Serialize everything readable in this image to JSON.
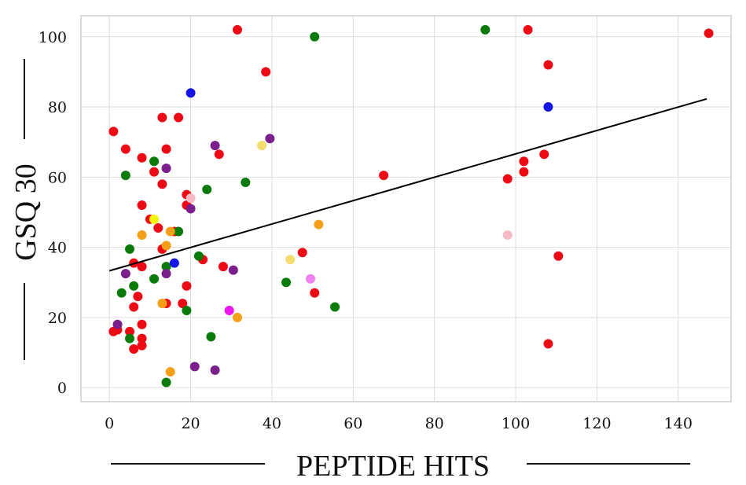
{
  "chart_data": {
    "type": "scatter",
    "xlabel": "PEPTIDE HITS",
    "ylabel": "GSQ 30",
    "xlim": [
      -7,
      153
    ],
    "ylim": [
      -4,
      106
    ],
    "xticks": [
      0,
      20,
      40,
      60,
      80,
      100,
      120,
      140
    ],
    "yticks": [
      0,
      20,
      40,
      60,
      80,
      100
    ],
    "grid": true,
    "legend": "none",
    "colors": {
      "red": "#ee0a14",
      "green": "#0a7a0a",
      "purple": "#7a1f8c",
      "orange": "#f5a018",
      "blue": "#1414e6",
      "pink": "#f7b9c4",
      "khaki": "#f5dc6e",
      "yellow": "#f5f50a",
      "violet": "#ee82ee",
      "magenta": "#ee14ee"
    },
    "trendline": {
      "x": [
        0,
        147
      ],
      "y": [
        33.3,
        82.3
      ],
      "color": "#000000"
    },
    "points": [
      {
        "x": 1,
        "y": 16,
        "c": "red"
      },
      {
        "x": 1,
        "y": 73,
        "c": "red"
      },
      {
        "x": 2,
        "y": 16.5,
        "c": "red"
      },
      {
        "x": 4,
        "y": 68,
        "c": "red"
      },
      {
        "x": 5,
        "y": 16,
        "c": "red"
      },
      {
        "x": 6,
        "y": 11,
        "c": "red"
      },
      {
        "x": 6,
        "y": 23,
        "c": "red"
      },
      {
        "x": 6,
        "y": 35.5,
        "c": "red"
      },
      {
        "x": 7,
        "y": 26,
        "c": "red"
      },
      {
        "x": 8,
        "y": 12,
        "c": "red"
      },
      {
        "x": 8,
        "y": 14,
        "c": "red"
      },
      {
        "x": 8,
        "y": 18,
        "c": "red"
      },
      {
        "x": 8,
        "y": 34.5,
        "c": "red"
      },
      {
        "x": 8,
        "y": 52,
        "c": "red"
      },
      {
        "x": 8,
        "y": 65.5,
        "c": "red"
      },
      {
        "x": 10,
        "y": 48,
        "c": "red"
      },
      {
        "x": 11,
        "y": 61.5,
        "c": "red"
      },
      {
        "x": 12,
        "y": 45.5,
        "c": "red"
      },
      {
        "x": 13,
        "y": 39.5,
        "c": "red"
      },
      {
        "x": 13,
        "y": 58,
        "c": "red"
      },
      {
        "x": 13,
        "y": 77,
        "c": "red"
      },
      {
        "x": 14,
        "y": 24,
        "c": "red"
      },
      {
        "x": 14,
        "y": 68,
        "c": "red"
      },
      {
        "x": 16,
        "y": 44.5,
        "c": "red"
      },
      {
        "x": 17,
        "y": 77,
        "c": "red"
      },
      {
        "x": 18,
        "y": 24,
        "c": "red"
      },
      {
        "x": 19,
        "y": 29,
        "c": "red"
      },
      {
        "x": 19,
        "y": 52,
        "c": "red"
      },
      {
        "x": 19,
        "y": 55,
        "c": "red"
      },
      {
        "x": 23,
        "y": 36.5,
        "c": "red"
      },
      {
        "x": 27,
        "y": 66.5,
        "c": "red"
      },
      {
        "x": 28,
        "y": 34.5,
        "c": "red"
      },
      {
        "x": 31.5,
        "y": 102,
        "c": "red"
      },
      {
        "x": 38.5,
        "y": 90,
        "c": "red"
      },
      {
        "x": 47.5,
        "y": 38.5,
        "c": "red"
      },
      {
        "x": 50.5,
        "y": 27,
        "c": "red"
      },
      {
        "x": 67.5,
        "y": 60.5,
        "c": "red"
      },
      {
        "x": 98,
        "y": 59.5,
        "c": "red"
      },
      {
        "x": 102,
        "y": 61.5,
        "c": "red"
      },
      {
        "x": 102,
        "y": 64.5,
        "c": "red"
      },
      {
        "x": 103,
        "y": 102,
        "c": "red"
      },
      {
        "x": 107,
        "y": 66.5,
        "c": "red"
      },
      {
        "x": 108,
        "y": 12.5,
        "c": "red"
      },
      {
        "x": 108,
        "y": 92,
        "c": "red"
      },
      {
        "x": 110.5,
        "y": 37.5,
        "c": "red"
      },
      {
        "x": 147.5,
        "y": 101,
        "c": "red"
      },
      {
        "x": 3,
        "y": 27,
        "c": "green"
      },
      {
        "x": 4,
        "y": 60.5,
        "c": "green"
      },
      {
        "x": 5,
        "y": 14,
        "c": "green"
      },
      {
        "x": 5,
        "y": 39.5,
        "c": "green"
      },
      {
        "x": 6,
        "y": 29,
        "c": "green"
      },
      {
        "x": 11,
        "y": 31,
        "c": "green"
      },
      {
        "x": 11,
        "y": 64.5,
        "c": "green"
      },
      {
        "x": 14,
        "y": 1.5,
        "c": "green"
      },
      {
        "x": 14,
        "y": 34.5,
        "c": "green"
      },
      {
        "x": 17,
        "y": 44.5,
        "c": "green"
      },
      {
        "x": 19,
        "y": 22,
        "c": "green"
      },
      {
        "x": 22,
        "y": 37.5,
        "c": "green"
      },
      {
        "x": 24,
        "y": 56.5,
        "c": "green"
      },
      {
        "x": 25,
        "y": 14.5,
        "c": "green"
      },
      {
        "x": 33.5,
        "y": 58.5,
        "c": "green"
      },
      {
        "x": 43.5,
        "y": 30,
        "c": "green"
      },
      {
        "x": 50.5,
        "y": 100,
        "c": "green"
      },
      {
        "x": 55.5,
        "y": 23,
        "c": "green"
      },
      {
        "x": 92.5,
        "y": 102,
        "c": "green"
      },
      {
        "x": 2,
        "y": 18,
        "c": "purple"
      },
      {
        "x": 4,
        "y": 32.5,
        "c": "purple"
      },
      {
        "x": 14,
        "y": 32.5,
        "c": "purple"
      },
      {
        "x": 14,
        "y": 62.5,
        "c": "purple"
      },
      {
        "x": 20,
        "y": 51,
        "c": "purple"
      },
      {
        "x": 21,
        "y": 6,
        "c": "purple"
      },
      {
        "x": 26,
        "y": 5,
        "c": "purple"
      },
      {
        "x": 26,
        "y": 69,
        "c": "purple"
      },
      {
        "x": 30.5,
        "y": 33.5,
        "c": "purple"
      },
      {
        "x": 39.5,
        "y": 71,
        "c": "purple"
      },
      {
        "x": 8,
        "y": 43.5,
        "c": "orange"
      },
      {
        "x": 13,
        "y": 24,
        "c": "orange"
      },
      {
        "x": 14,
        "y": 40.5,
        "c": "orange"
      },
      {
        "x": 15,
        "y": 4.5,
        "c": "orange"
      },
      {
        "x": 15,
        "y": 44.5,
        "c": "orange"
      },
      {
        "x": 31.5,
        "y": 20,
        "c": "orange"
      },
      {
        "x": 51.5,
        "y": 46.5,
        "c": "orange"
      },
      {
        "x": 16,
        "y": 35.5,
        "c": "blue"
      },
      {
        "x": 20,
        "y": 84,
        "c": "blue"
      },
      {
        "x": 108,
        "y": 80,
        "c": "blue"
      },
      {
        "x": 20,
        "y": 54,
        "c": "pink"
      },
      {
        "x": 98,
        "y": 43.5,
        "c": "pink"
      },
      {
        "x": 37.5,
        "y": 69,
        "c": "khaki"
      },
      {
        "x": 44.5,
        "y": 36.5,
        "c": "khaki"
      },
      {
        "x": 11,
        "y": 48,
        "c": "yellow"
      },
      {
        "x": 49.5,
        "y": 31,
        "c": "violet"
      },
      {
        "x": 29.5,
        "y": 22,
        "c": "magenta"
      }
    ]
  }
}
